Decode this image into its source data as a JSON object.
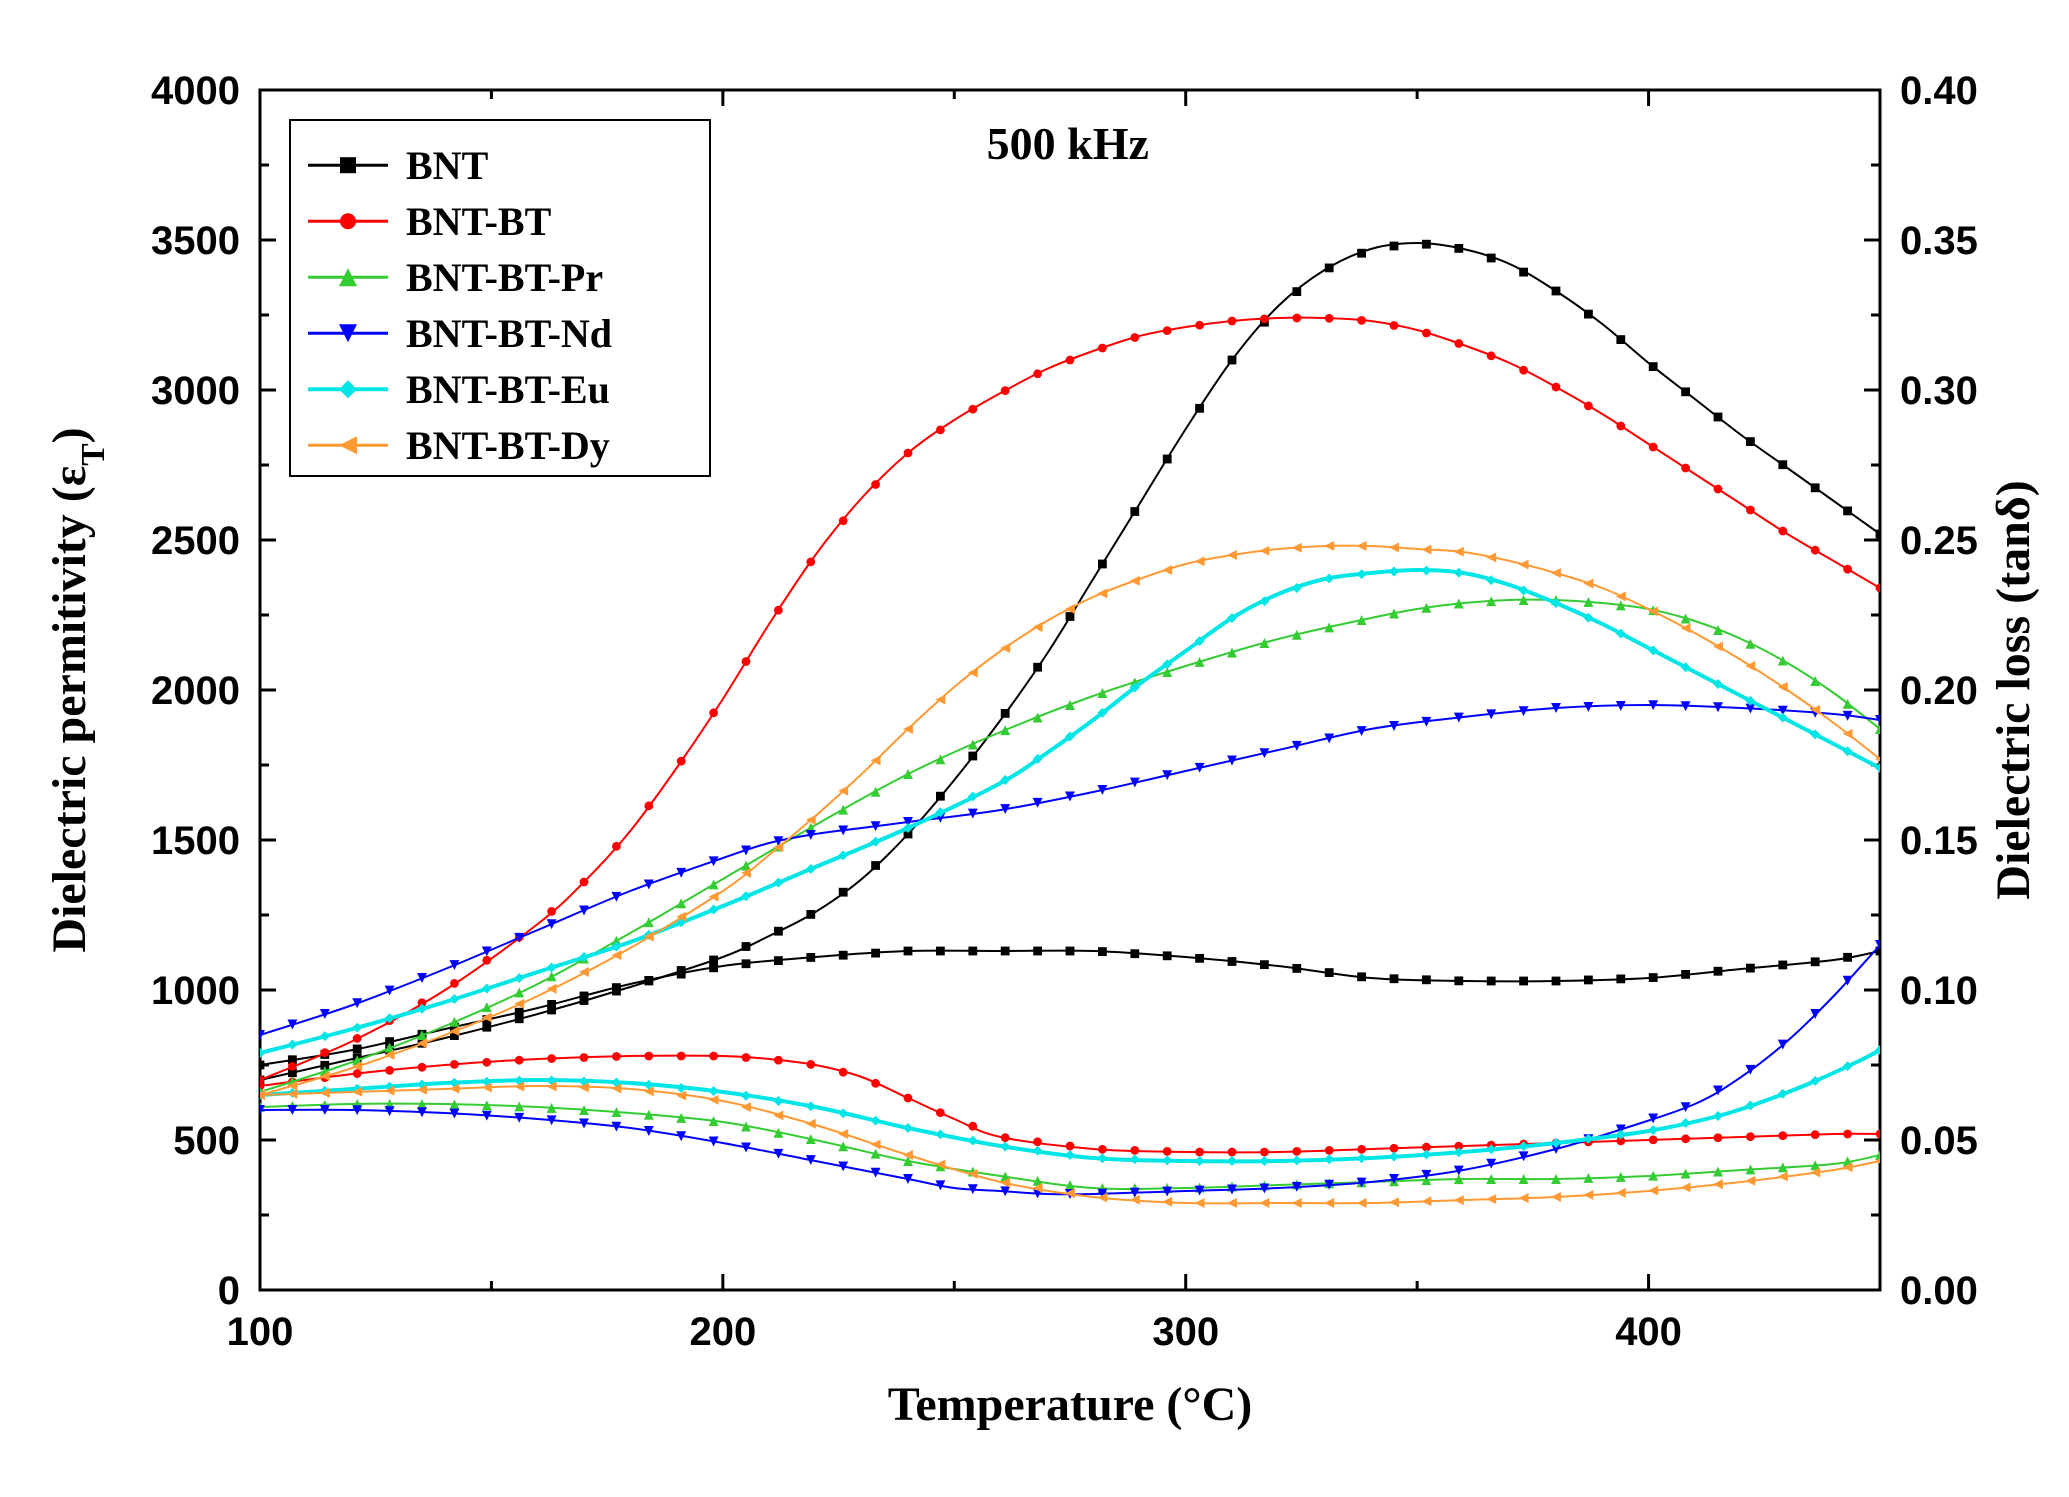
{
  "chart": {
    "type": "line-dual-axis",
    "annotation": "500 kHz",
    "background_color": "#ffffff",
    "plot_border_color": "#000000",
    "plot_border_width": 3,
    "tick_color": "#000000",
    "tick_width": 3,
    "tick_length": 16,
    "tick_label_fontsize": 40,
    "axis_label_fontsize": 48,
    "annotation_fontsize": 46,
    "legend": {
      "fontsize": 40,
      "border_color": "#000000",
      "border_width": 2,
      "background_color": "#ffffff",
      "marker_line_length": 80
    },
    "x_axis": {
      "label": "Temperature (°C)",
      "min": 100,
      "max": 450,
      "tick_step": 100,
      "ticks": [
        100,
        200,
        300,
        400
      ]
    },
    "y_left": {
      "label": "Dielectric permitivity (εT)",
      "label_plain": "Dielectric permitivity (ε",
      "label_sub": "T",
      "label_close": ")",
      "min": 0,
      "max": 4000,
      "tick_step": 500,
      "ticks": [
        0,
        500,
        1000,
        1500,
        2000,
        2500,
        3000,
        3500,
        4000
      ]
    },
    "y_right": {
      "label": "Dielectric loss (tanδ)",
      "min": 0.0,
      "max": 0.4,
      "tick_step": 0.05,
      "ticks": [
        "0.00",
        "0.05",
        "0.10",
        "0.15",
        "0.20",
        "0.25",
        "0.30",
        "0.35",
        "0.40"
      ]
    },
    "series": [
      {
        "id": "BNT",
        "label": "BNT",
        "color": "#000000",
        "marker": "square",
        "marker_size": 8,
        "line_width": 2,
        "permittivity": {
          "x": [
            100,
            120,
            140,
            160,
            180,
            200,
            210,
            220,
            230,
            240,
            250,
            260,
            270,
            280,
            290,
            300,
            310,
            320,
            330,
            340,
            350,
            360,
            370,
            380,
            390,
            400,
            410,
            420,
            430,
            440,
            450
          ],
          "y": [
            700,
            770,
            840,
            920,
            1010,
            1110,
            1180,
            1260,
            1370,
            1520,
            1700,
            1900,
            2120,
            2370,
            2620,
            2870,
            3100,
            3280,
            3400,
            3470,
            3490,
            3470,
            3420,
            3330,
            3220,
            3090,
            2970,
            2850,
            2740,
            2630,
            2520
          ]
        },
        "loss": {
          "x": [
            100,
            120,
            140,
            160,
            180,
            200,
            220,
            240,
            260,
            280,
            300,
            320,
            340,
            360,
            380,
            400,
            420,
            440,
            450
          ],
          "y": [
            0.075,
            0.08,
            0.087,
            0.094,
            0.102,
            0.108,
            0.111,
            0.113,
            0.113,
            0.113,
            0.111,
            0.108,
            0.104,
            0.103,
            0.103,
            0.104,
            0.107,
            0.11,
            0.113
          ]
        }
      },
      {
        "id": "BNT-BT",
        "label": "BNT-BT",
        "color": "#ff0000",
        "marker": "circle",
        "marker_size": 8,
        "line_width": 2,
        "permittivity": {
          "x": [
            100,
            120,
            140,
            160,
            170,
            180,
            190,
            200,
            210,
            220,
            230,
            240,
            250,
            260,
            270,
            280,
            290,
            300,
            310,
            320,
            330,
            340,
            350,
            360,
            370,
            380,
            390,
            400,
            410,
            420,
            430,
            440,
            450
          ],
          "y": [
            700,
            830,
            1000,
            1220,
            1360,
            1530,
            1740,
            1970,
            2220,
            2450,
            2640,
            2790,
            2900,
            2990,
            3070,
            3130,
            3180,
            3210,
            3230,
            3240,
            3240,
            3230,
            3200,
            3150,
            3090,
            3010,
            2920,
            2820,
            2720,
            2620,
            2520,
            2430,
            2340
          ]
        },
        "loss": {
          "x": [
            100,
            120,
            140,
            160,
            180,
            200,
            210,
            220,
            230,
            240,
            250,
            260,
            280,
            300,
            320,
            340,
            360,
            380,
            400,
            420,
            440,
            450
          ],
          "y": [
            0.068,
            0.072,
            0.075,
            0.077,
            0.078,
            0.078,
            0.077,
            0.075,
            0.071,
            0.064,
            0.057,
            0.051,
            0.047,
            0.046,
            0.046,
            0.047,
            0.048,
            0.049,
            0.05,
            0.051,
            0.052,
            0.052
          ]
        }
      },
      {
        "id": "BNT-BT-Pr",
        "label": "BNT-BT-Pr",
        "color": "#33cc33",
        "marker": "triangle-up",
        "marker_size": 9,
        "line_width": 2,
        "permittivity": {
          "x": [
            100,
            120,
            140,
            160,
            180,
            200,
            220,
            240,
            260,
            280,
            300,
            320,
            340,
            350,
            360,
            370,
            380,
            390,
            400,
            410,
            420,
            430,
            440,
            450
          ],
          "y": [
            660,
            760,
            880,
            1020,
            1190,
            1370,
            1550,
            1720,
            1860,
            1980,
            2080,
            2170,
            2240,
            2270,
            2290,
            2300,
            2300,
            2290,
            2270,
            2230,
            2170,
            2090,
            1990,
            1870
          ]
        },
        "loss": {
          "x": [
            100,
            120,
            140,
            160,
            180,
            200,
            220,
            240,
            260,
            280,
            300,
            320,
            340,
            360,
            380,
            400,
            420,
            440,
            450
          ],
          "y": [
            0.061,
            0.062,
            0.062,
            0.061,
            0.059,
            0.056,
            0.05,
            0.043,
            0.038,
            0.034,
            0.034,
            0.035,
            0.036,
            0.037,
            0.037,
            0.038,
            0.04,
            0.042,
            0.045
          ]
        }
      },
      {
        "id": "BNT-BT-Nd",
        "label": "BNT-BT-Nd",
        "color": "#0000ff",
        "marker": "triangle-down",
        "marker_size": 9,
        "line_width": 2,
        "permittivity": {
          "x": [
            100,
            120,
            140,
            160,
            180,
            200,
            210,
            220,
            230,
            240,
            260,
            280,
            300,
            320,
            340,
            360,
            380,
            400,
            420,
            440,
            450
          ],
          "y": [
            850,
            950,
            1070,
            1200,
            1330,
            1440,
            1490,
            1520,
            1540,
            1560,
            1600,
            1660,
            1730,
            1800,
            1870,
            1910,
            1940,
            1950,
            1940,
            1920,
            1900
          ]
        },
        "loss": {
          "x": [
            100,
            120,
            140,
            160,
            180,
            200,
            220,
            240,
            250,
            260,
            270,
            280,
            300,
            320,
            340,
            360,
            380,
            395,
            410,
            420,
            430,
            440,
            450
          ],
          "y": [
            0.06,
            0.06,
            0.059,
            0.057,
            0.054,
            0.049,
            0.043,
            0.037,
            0.034,
            0.033,
            0.032,
            0.032,
            0.033,
            0.034,
            0.036,
            0.04,
            0.047,
            0.054,
            0.062,
            0.071,
            0.083,
            0.098,
            0.115
          ]
        }
      },
      {
        "id": "BNT-BT-Eu",
        "label": "BNT-BT-Eu",
        "color": "#00e5e5",
        "marker": "diamond",
        "marker_size": 9,
        "line_width": 4,
        "permittivity": {
          "x": [
            100,
            120,
            140,
            160,
            180,
            200,
            220,
            240,
            260,
            270,
            280,
            290,
            300,
            310,
            320,
            330,
            340,
            350,
            360,
            370,
            380,
            390,
            400,
            410,
            420,
            430,
            440,
            450
          ],
          "y": [
            790,
            870,
            960,
            1060,
            1160,
            1280,
            1410,
            1540,
            1690,
            1790,
            1900,
            2020,
            2130,
            2240,
            2320,
            2370,
            2390,
            2400,
            2390,
            2350,
            2290,
            2220,
            2140,
            2060,
            1980,
            1900,
            1820,
            1740
          ]
        },
        "loss": {
          "x": [
            100,
            120,
            140,
            160,
            180,
            200,
            220,
            240,
            260,
            280,
            300,
            320,
            340,
            360,
            380,
            400,
            415,
            425,
            435,
            445,
            450
          ],
          "y": [
            0.065,
            0.067,
            0.069,
            0.07,
            0.069,
            0.066,
            0.061,
            0.054,
            0.048,
            0.044,
            0.043,
            0.043,
            0.044,
            0.046,
            0.049,
            0.053,
            0.058,
            0.063,
            0.069,
            0.076,
            0.08
          ]
        }
      },
      {
        "id": "BNT-BT-Dy",
        "label": "BNT-BT-Dy",
        "color": "#ff9933",
        "marker": "triangle-left",
        "marker_size": 9,
        "line_width": 2,
        "permittivity": {
          "x": [
            100,
            120,
            140,
            160,
            180,
            200,
            210,
            220,
            230,
            240,
            250,
            260,
            270,
            280,
            290,
            300,
            310,
            320,
            330,
            340,
            350,
            360,
            370,
            380,
            390,
            400,
            410,
            420,
            430,
            440,
            450
          ],
          "y": [
            650,
            740,
            850,
            980,
            1140,
            1330,
            1450,
            1580,
            1720,
            1870,
            2010,
            2130,
            2230,
            2310,
            2370,
            2420,
            2450,
            2470,
            2480,
            2480,
            2470,
            2460,
            2430,
            2390,
            2340,
            2270,
            2190,
            2100,
            2000,
            1890,
            1770
          ]
        },
        "loss": {
          "x": [
            100,
            120,
            140,
            160,
            180,
            200,
            220,
            240,
            260,
            280,
            300,
            320,
            340,
            360,
            380,
            400,
            420,
            440,
            450
          ],
          "y": [
            0.065,
            0.066,
            0.067,
            0.068,
            0.067,
            0.063,
            0.055,
            0.045,
            0.036,
            0.031,
            0.029,
            0.029,
            0.029,
            0.03,
            0.031,
            0.033,
            0.036,
            0.04,
            0.043
          ]
        }
      }
    ]
  }
}
